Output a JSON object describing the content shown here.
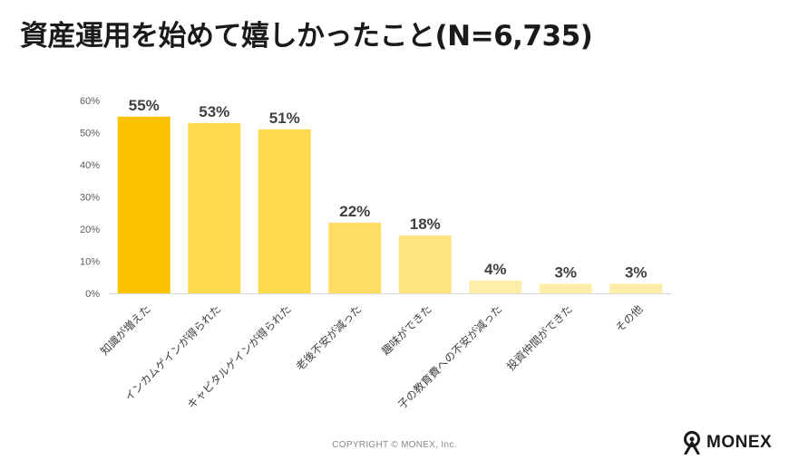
{
  "title": "資産運用を始めて嬉しかったこと(N=6,735)",
  "copyright": "COPYRIGHT © MONEX, Inc.",
  "logo": {
    "text": "MONEX",
    "icon": "monex-person-icon"
  },
  "colors": {
    "bars": [
      "#FCC200",
      "#FFD94E",
      "#FFD94E",
      "#FFDD62",
      "#FFE47F",
      "#FFEEAA",
      "#FFEEAA",
      "#FFEEAA"
    ],
    "axis": "#d9d9d9",
    "tick_text": "#595959",
    "label_text": "#404040"
  },
  "chart_data": {
    "type": "bar",
    "categories": [
      "知識が増えた",
      "インカムゲインが得られた",
      "キャピタルゲインが得られた",
      "老後不安が減った",
      "趣味ができた",
      "子の教育費への不安が減った",
      "投資仲間ができた",
      "その他"
    ],
    "values": [
      55,
      53,
      51,
      22,
      18,
      4,
      3,
      3
    ],
    "data_labels": [
      "55%",
      "53%",
      "51%",
      "22%",
      "18%",
      "4%",
      "3%",
      "3%"
    ],
    "ylim": [
      0,
      60
    ],
    "yticks": [
      "0%",
      "10%",
      "20%",
      "30%",
      "40%",
      "50%",
      "60%"
    ],
    "grid": false,
    "legend": "none"
  }
}
